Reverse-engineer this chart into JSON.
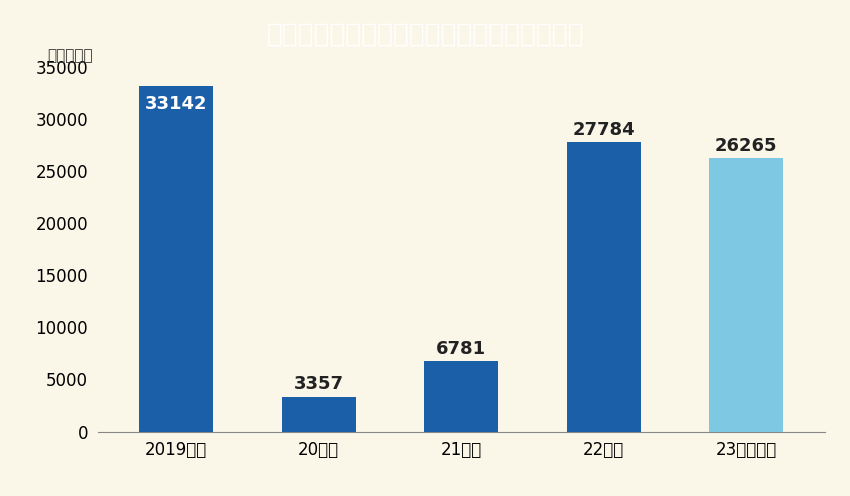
{
  "title": "日本年金機構が差し押さえ執行した事業所数",
  "unit_label": "（事業所）",
  "categories": [
    "2019年度",
    "20年度",
    "21年度",
    "22年度",
    "23年度上期"
  ],
  "values": [
    33142,
    3357,
    6781,
    27784,
    26265
  ],
  "bar_colors": [
    "#1a5fa8",
    "#1a5fa8",
    "#1a5fa8",
    "#1a5fa8",
    "#7ec8e3"
  ],
  "value_colors": [
    "#ffffff",
    "#222222",
    "#222222",
    "#222222",
    "#222222"
  ],
  "ylim": [
    0,
    35000
  ],
  "yticks": [
    0,
    5000,
    10000,
    15000,
    20000,
    25000,
    30000,
    35000
  ],
  "title_bg_color": "#1e3a8a",
  "title_text_color": "#ffffff",
  "plot_bg_color": "#faf6e8",
  "fig_bg_color": "#ffffff",
  "outer_bg_color": "#faf6e8",
  "title_fontsize": 19,
  "label_fontsize": 13,
  "tick_fontsize": 12,
  "unit_fontsize": 11,
  "bar_width": 0.52
}
